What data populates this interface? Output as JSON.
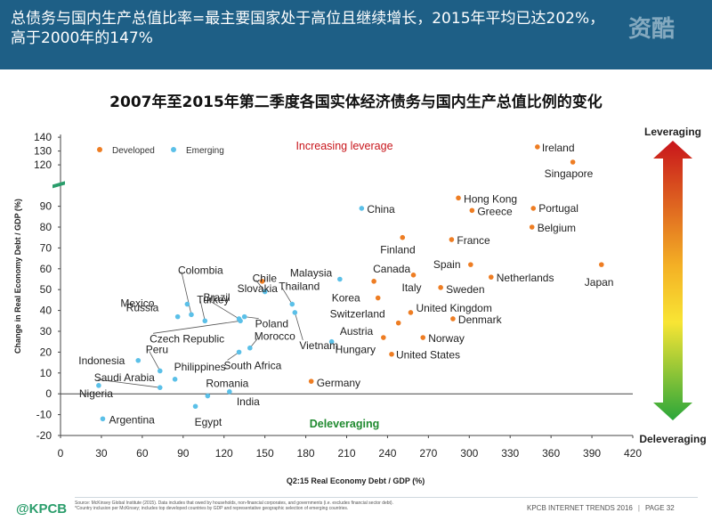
{
  "header": {
    "line1": "总债务与国内生产总值比率=最主要国家处于高位且继续增长，2015年平均已达202%，",
    "line2": "高于2000年的147%",
    "watermark": "资酷"
  },
  "chart_title": "2007年至2015年第二季度各国实体经济债务与国内生产总值比例的变化",
  "footer": {
    "brand": "@KPCB",
    "source_line1": "Source: McKinsey Global Institute (2015). Data includes that owed by households, non-financial corporates, and governments (i.e. excludes financial sector debt).",
    "source_line2": "*Country inclusion per McKinsey; includes top developed countries by GDP and representative geographic selection of emerging countries.",
    "trend_label": "KPCB INTERNET TRENDS 2016",
    "page_label": "PAGE 32"
  },
  "colors": {
    "header_bg": "#1e5f86",
    "developed": "#ee7d23",
    "emerging": "#5bc0e8",
    "axis_break": "#2a9d6b"
  },
  "chart_data": {
    "type": "scatter",
    "xlabel": "Q2:15 Real Economy Debt / GDP (%)",
    "ylabel": "Change in Real Economy Debt / GDP (%)",
    "xlim": [
      0,
      420
    ],
    "ylim": [
      -20,
      140
    ],
    "x_ticks": [
      0,
      30,
      60,
      90,
      120,
      150,
      180,
      210,
      240,
      270,
      300,
      330,
      360,
      390,
      420
    ],
    "y_ticks": [
      -20,
      -10,
      0,
      10,
      20,
      30,
      40,
      50,
      60,
      70,
      80,
      90,
      120,
      130,
      140
    ],
    "y_axis_break": "between 90 and 120",
    "grid": false,
    "legend_placement": "top-left",
    "legend": [
      {
        "name": "Developed",
        "series": "developed"
      },
      {
        "name": "Emerging",
        "series": "emerging"
      }
    ],
    "annotations": {
      "top": "Increasing leverage",
      "bottom": "Deleveraging"
    },
    "side_bar": {
      "top_label": "Leveraging",
      "bottom_label": "Deleveraging"
    },
    "series": [
      {
        "name": "Developed",
        "points": [
          {
            "label": "Ireland",
            "x": 350,
            "y": 133
          },
          {
            "label": "Singapore",
            "x": 376,
            "y": 122
          },
          {
            "label": "Hong Kong",
            "x": 292,
            "y": 96
          },
          {
            "label": "Greece",
            "x": 302,
            "y": 88
          },
          {
            "label": "Portugal",
            "x": 347,
            "y": 89
          },
          {
            "label": "Belgium",
            "x": 346,
            "y": 80
          },
          {
            "label": "Finland",
            "x": 251,
            "y": 75
          },
          {
            "label": "France",
            "x": 287,
            "y": 74
          },
          {
            "label": "Japan",
            "x": 397,
            "y": 62
          },
          {
            "label": "Spain",
            "x": 301,
            "y": 62
          },
          {
            "label": "Netherlands",
            "x": 316,
            "y": 56
          },
          {
            "label": "Canada",
            "x": 230,
            "y": 54
          },
          {
            "label": "Italy",
            "x": 259,
            "y": 57
          },
          {
            "label": "Sweden",
            "x": 279,
            "y": 51
          },
          {
            "label": "Korea",
            "x": 233,
            "y": 46
          },
          {
            "label": "United Kingdom",
            "x": 257,
            "y": 39
          },
          {
            "label": "Switzerland",
            "x": 248,
            "y": 34
          },
          {
            "label": "Denmark",
            "x": 288,
            "y": 36
          },
          {
            "label": "Austria",
            "x": 237,
            "y": 27
          },
          {
            "label": "Norway",
            "x": 266,
            "y": 27
          },
          {
            "label": "United States",
            "x": 243,
            "y": 19
          },
          {
            "label": "Slovakia",
            "x": 148,
            "y": 54
          },
          {
            "label": "Germany",
            "x": 184,
            "y": 6
          }
        ]
      },
      {
        "name": "Emerging",
        "points": [
          {
            "label": "China",
            "x": 221,
            "y": 89
          },
          {
            "label": "Malaysia",
            "x": 205,
            "y": 55
          },
          {
            "label": "Colombia",
            "x": 96,
            "y": 38
          },
          {
            "label": "Turkey",
            "x": 106,
            "y": 35
          },
          {
            "label": "Russia",
            "x": 86,
            "y": 37
          },
          {
            "label": "Mexico",
            "x": 93,
            "y": 43
          },
          {
            "label": "Brazil",
            "x": 131,
            "y": 36
          },
          {
            "label": "Chile",
            "x": 150,
            "y": 49
          },
          {
            "label": "Thailand",
            "x": 170,
            "y": 43
          },
          {
            "label": "Poland",
            "x": 135,
            "y": 37
          },
          {
            "label": "Czech Republic",
            "x": 132,
            "y": 35
          },
          {
            "label": "Morocco",
            "x": 139,
            "y": 22
          },
          {
            "label": "South Africa",
            "x": 131,
            "y": 20
          },
          {
            "label": "Vietnam",
            "x": 172,
            "y": 39
          },
          {
            "label": "Hungary",
            "x": 199,
            "y": 25
          },
          {
            "label": "Indonesia",
            "x": 57,
            "y": 16
          },
          {
            "label": "Peru",
            "x": 73,
            "y": 11
          },
          {
            "label": "Philippines",
            "x": 84,
            "y": 7
          },
          {
            "label": "Saudi Arabia",
            "x": 73,
            "y": 3
          },
          {
            "label": "Nigeria",
            "x": 28,
            "y": 4
          },
          {
            "label": "Romania",
            "x": 108,
            "y": -1
          },
          {
            "label": "India",
            "x": 124,
            "y": 1
          },
          {
            "label": "Egypt",
            "x": 99,
            "y": -6
          },
          {
            "label": "Argentina",
            "x": 31,
            "y": -12
          }
        ]
      }
    ]
  }
}
